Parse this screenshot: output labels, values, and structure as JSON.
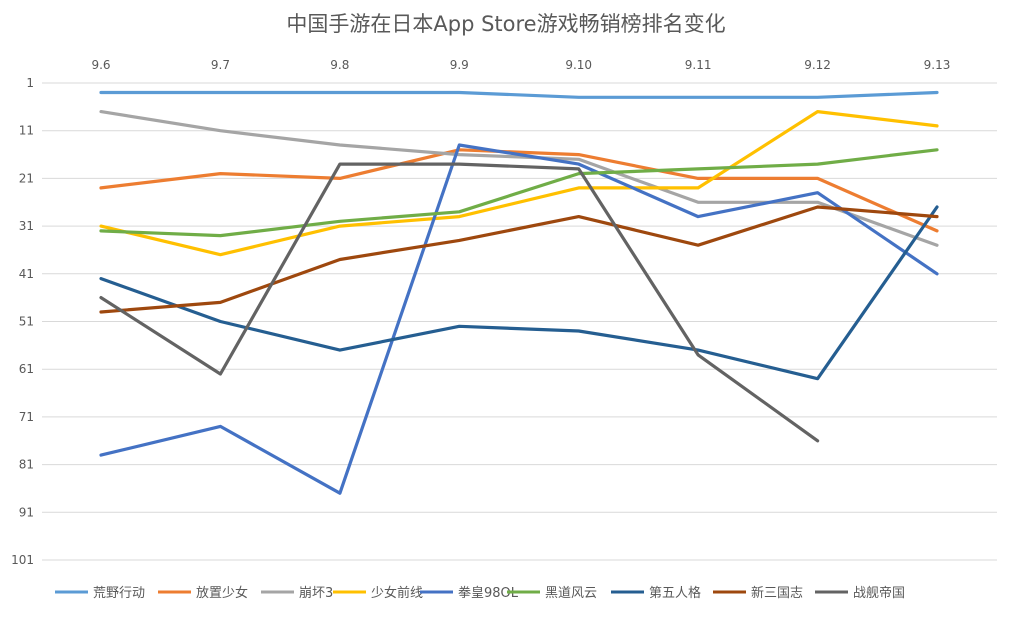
{
  "chart_data": {
    "type": "line",
    "title": "中国手游在日本App Store游戏畅销榜排名变化",
    "categories": [
      "9.6",
      "9.7",
      "9.8",
      "9.9",
      "9.10",
      "9.11",
      "9.12",
      "9.13"
    ],
    "y_ticks": [
      "1",
      "11",
      "21",
      "31",
      "41",
      "51",
      "61",
      "71",
      "81",
      "91",
      "101"
    ],
    "ylim": [
      1,
      101
    ],
    "y_reversed": true,
    "grid": true,
    "legend_position": "bottom",
    "series": [
      {
        "name": "荒野行动",
        "color": "#5B9BD5",
        "values": [
          3,
          3,
          3,
          3,
          4,
          4,
          4,
          3
        ]
      },
      {
        "name": "放置少女",
        "color": "#ED7D31",
        "values": [
          23,
          20,
          21,
          15,
          16,
          21,
          21,
          32
        ]
      },
      {
        "name": "崩坏3",
        "color": "#A5A5A5",
        "values": [
          7,
          11,
          14,
          16,
          17,
          26,
          26,
          35
        ]
      },
      {
        "name": "少女前线",
        "color": "#FFC000",
        "values": [
          31,
          37,
          31,
          29,
          23,
          23,
          7,
          10
        ]
      },
      {
        "name": "拳皇98OL",
        "color": "#4472C4",
        "values": [
          79,
          73,
          87,
          14,
          18,
          29,
          24,
          41
        ]
      },
      {
        "name": "黑道风云",
        "color": "#70AD47",
        "values": [
          32,
          33,
          30,
          28,
          20,
          19,
          18,
          15
        ]
      },
      {
        "name": "第五人格",
        "color": "#255E91",
        "values": [
          42,
          51,
          57,
          52,
          53,
          57,
          63,
          27
        ]
      },
      {
        "name": "新三国志",
        "color": "#9E480E",
        "values": [
          49,
          47,
          38,
          34,
          29,
          35,
          27,
          29
        ]
      },
      {
        "name": "战舰帝国",
        "color": "#636363",
        "values": [
          46,
          62,
          18,
          18,
          19,
          58,
          76,
          null
        ]
      }
    ]
  }
}
